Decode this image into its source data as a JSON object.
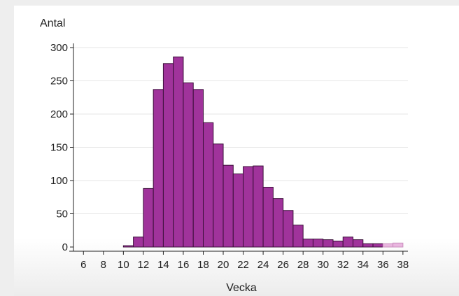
{
  "chart_data": {
    "type": "bar",
    "xlabel": "Vecka",
    "ylabel": "Antal",
    "ylim": [
      0,
      300
    ],
    "xlim": [
      5,
      38.5
    ],
    "yticks": [
      0,
      50,
      100,
      150,
      200,
      250,
      300
    ],
    "xticks": [
      6,
      8,
      10,
      12,
      14,
      16,
      18,
      20,
      22,
      24,
      26,
      28,
      30,
      32,
      34,
      36,
      38
    ],
    "grid": true,
    "bar_color": "#a0339b",
    "bar_edge_color": "#3a0f38",
    "faded_bar_color": "#e9b6df",
    "bins": [
      {
        "x": 10,
        "value": 2
      },
      {
        "x": 11,
        "value": 15
      },
      {
        "x": 12,
        "value": 88
      },
      {
        "x": 13,
        "value": 237
      },
      {
        "x": 14,
        "value": 276
      },
      {
        "x": 15,
        "value": 286
      },
      {
        "x": 16,
        "value": 247
      },
      {
        "x": 17,
        "value": 237
      },
      {
        "x": 18,
        "value": 187
      },
      {
        "x": 19,
        "value": 155
      },
      {
        "x": 20,
        "value": 123
      },
      {
        "x": 21,
        "value": 110
      },
      {
        "x": 22,
        "value": 121
      },
      {
        "x": 23,
        "value": 122
      },
      {
        "x": 24,
        "value": 90
      },
      {
        "x": 25,
        "value": 73
      },
      {
        "x": 26,
        "value": 55
      },
      {
        "x": 27,
        "value": 33
      },
      {
        "x": 28,
        "value": 12
      },
      {
        "x": 29,
        "value": 12
      },
      {
        "x": 30,
        "value": 11
      },
      {
        "x": 31,
        "value": 9
      },
      {
        "x": 32,
        "value": 15
      },
      {
        "x": 33,
        "value": 11
      },
      {
        "x": 34,
        "value": 5
      },
      {
        "x": 35,
        "value": 5
      },
      {
        "x": 36,
        "value": 5,
        "faded": true
      },
      {
        "x": 37,
        "value": 6,
        "faded": true
      }
    ]
  }
}
